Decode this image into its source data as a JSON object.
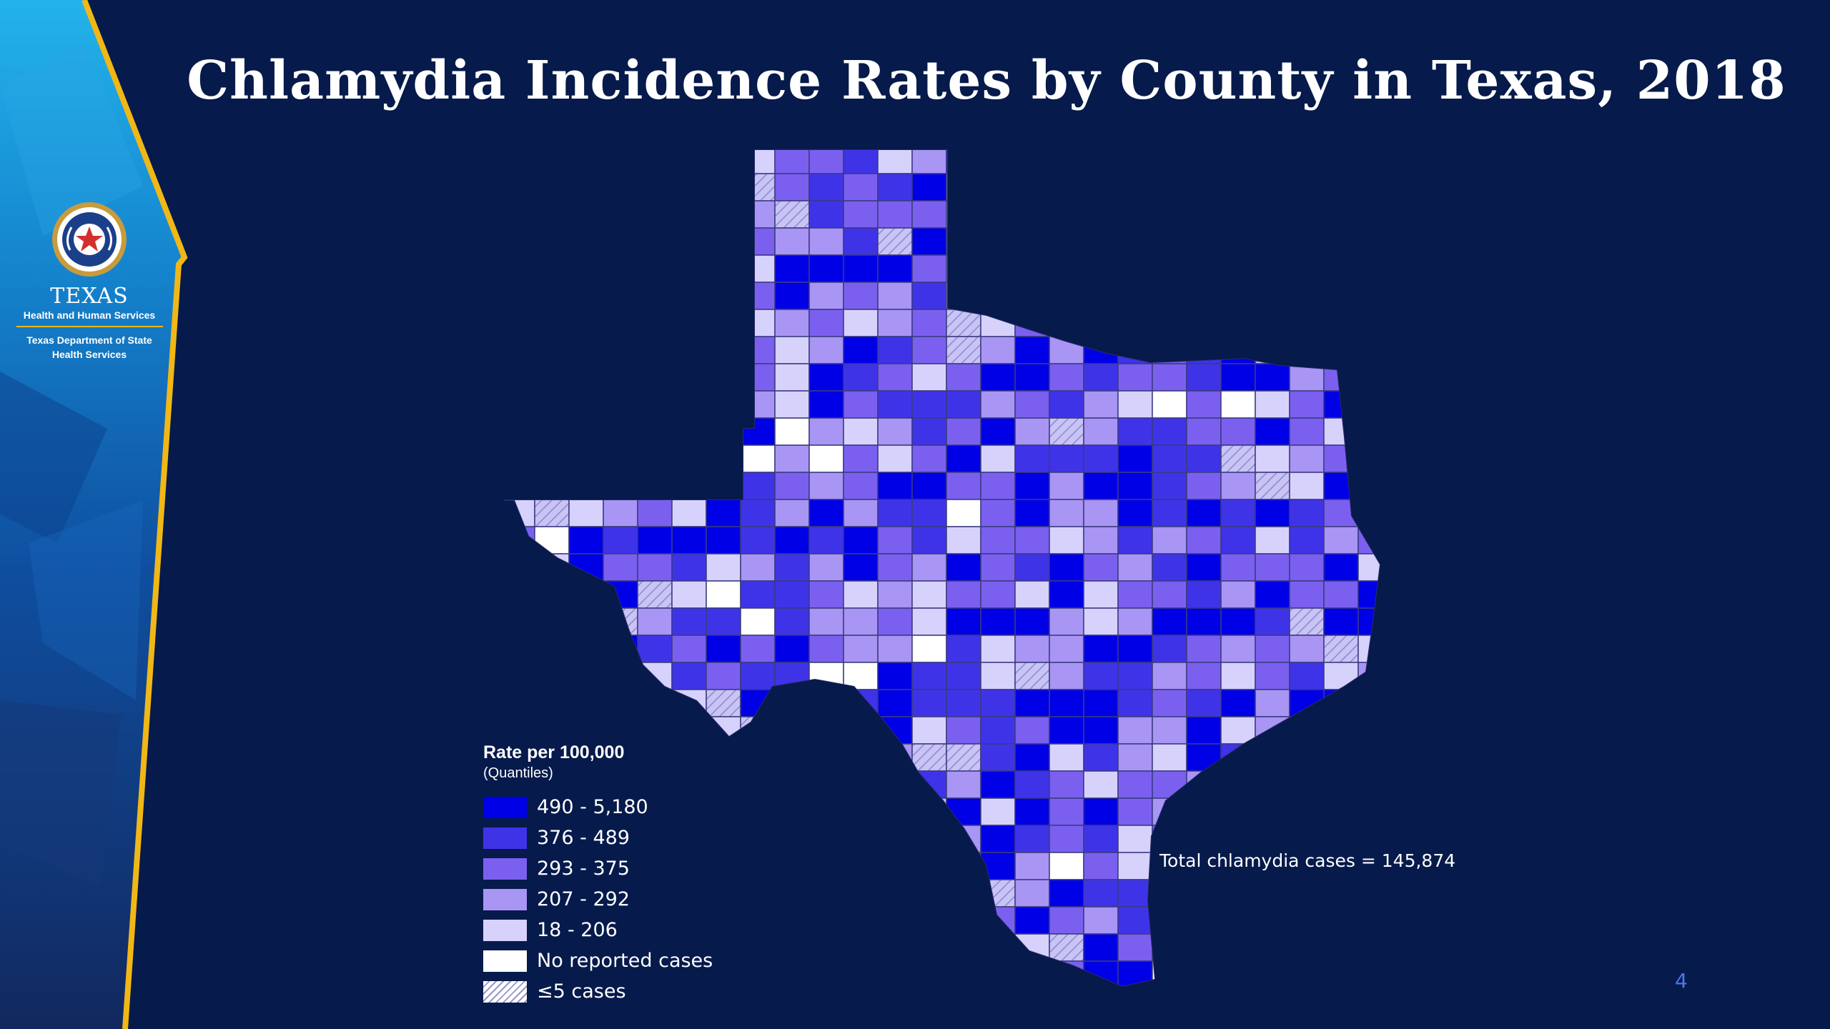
{
  "slide": {
    "title": "Chlamydia Incidence Rates by County in Texas, 2018",
    "page_number": "4",
    "total_note": "Total chlamydia cases = 145,874"
  },
  "logo": {
    "texas": "TEXAS",
    "hhs": "Health and Human Services",
    "dshs_line1": "Texas Department of State",
    "dshs_line2": "Health Services"
  },
  "legend": {
    "title": "Rate per 100,000",
    "subtitle": "(Quantiles)",
    "items": [
      {
        "label": "490 - 5,180",
        "color": "#0000e6"
      },
      {
        "label": "376 - 489",
        "color": "#3f33e8"
      },
      {
        "label": "293 - 375",
        "color": "#7b60f0"
      },
      {
        "label": "207 - 292",
        "color": "#a895f4"
      },
      {
        "label": "18 - 206",
        "color": "#d6d2fb"
      },
      {
        "label": "No reported cases",
        "color": "#ffffff"
      },
      {
        "label": "≤5 cases",
        "color": "hatch"
      }
    ]
  },
  "colors": {
    "background": "#061a4b",
    "accent_gold": "#f1b716",
    "page_number": "#4a78e8"
  }
}
